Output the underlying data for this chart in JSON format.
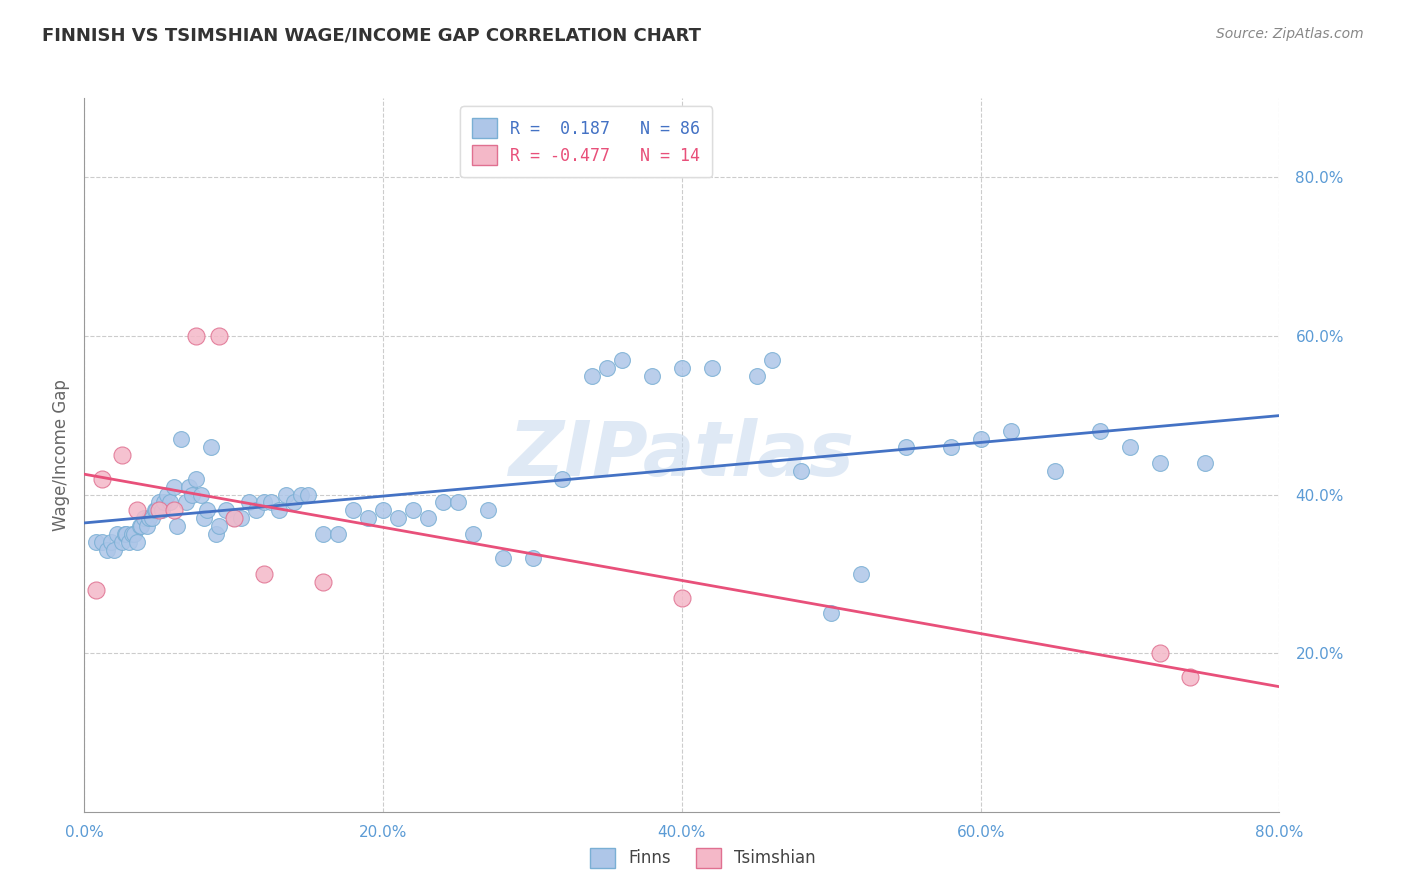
{
  "title": "FINNISH VS TSIMSHIAN WAGE/INCOME GAP CORRELATION CHART",
  "source": "Source: ZipAtlas.com",
  "ylabel": "Wage/Income Gap",
  "xlim": [
    0.0,
    0.8
  ],
  "ylim": [
    0.0,
    0.9
  ],
  "xticks": [
    0.0,
    0.2,
    0.4,
    0.6,
    0.8
  ],
  "yticks": [
    0.2,
    0.4,
    0.6,
    0.8
  ],
  "xticklabels": [
    "0.0%",
    "20.0%",
    "40.0%",
    "60.0%",
    "80.0%"
  ],
  "yticklabels": [
    "20.0%",
    "40.0%",
    "60.0%",
    "80.0%"
  ],
  "grid_color": "#cccccc",
  "background_color": "#ffffff",
  "finns_color": "#aec6e8",
  "finns_edge_color": "#7aafd4",
  "tsimshian_color": "#f4b8c8",
  "tsimshian_edge_color": "#e07090",
  "trend_finn_color": "#4472c4",
  "trend_tsim_color": "#e8507a",
  "watermark": "ZIPatlas",
  "legend_r_finn": "0.187",
  "legend_n_finn": "86",
  "legend_r_tsim": "-0.477",
  "legend_n_tsim": "14",
  "tick_color": "#5b9bd5",
  "finns_x": [
    0.008,
    0.012,
    0.015,
    0.018,
    0.02,
    0.022,
    0.025,
    0.027,
    0.028,
    0.03,
    0.032,
    0.033,
    0.035,
    0.037,
    0.038,
    0.04,
    0.042,
    0.043,
    0.045,
    0.047,
    0.048,
    0.05,
    0.052,
    0.053,
    0.055,
    0.057,
    0.06,
    0.062,
    0.065,
    0.068,
    0.07,
    0.072,
    0.075,
    0.078,
    0.08,
    0.082,
    0.085,
    0.088,
    0.09,
    0.095,
    0.1,
    0.105,
    0.11,
    0.115,
    0.12,
    0.125,
    0.13,
    0.135,
    0.14,
    0.145,
    0.15,
    0.16,
    0.17,
    0.18,
    0.19,
    0.2,
    0.21,
    0.22,
    0.23,
    0.24,
    0.25,
    0.26,
    0.27,
    0.28,
    0.3,
    0.32,
    0.34,
    0.35,
    0.36,
    0.38,
    0.4,
    0.42,
    0.45,
    0.46,
    0.48,
    0.5,
    0.52,
    0.55,
    0.58,
    0.6,
    0.62,
    0.65,
    0.68,
    0.7,
    0.72,
    0.75
  ],
  "finns_y": [
    0.34,
    0.34,
    0.33,
    0.34,
    0.33,
    0.35,
    0.34,
    0.35,
    0.35,
    0.34,
    0.35,
    0.35,
    0.34,
    0.36,
    0.36,
    0.37,
    0.36,
    0.37,
    0.37,
    0.38,
    0.38,
    0.39,
    0.38,
    0.39,
    0.4,
    0.39,
    0.41,
    0.36,
    0.47,
    0.39,
    0.41,
    0.4,
    0.42,
    0.4,
    0.37,
    0.38,
    0.46,
    0.35,
    0.36,
    0.38,
    0.37,
    0.37,
    0.39,
    0.38,
    0.39,
    0.39,
    0.38,
    0.4,
    0.39,
    0.4,
    0.4,
    0.35,
    0.35,
    0.38,
    0.37,
    0.38,
    0.37,
    0.38,
    0.37,
    0.39,
    0.39,
    0.35,
    0.38,
    0.32,
    0.32,
    0.42,
    0.55,
    0.56,
    0.57,
    0.55,
    0.56,
    0.56,
    0.55,
    0.57,
    0.43,
    0.25,
    0.3,
    0.46,
    0.46,
    0.47,
    0.48,
    0.43,
    0.48,
    0.46,
    0.44,
    0.44
  ],
  "tsimshian_x": [
    0.008,
    0.012,
    0.025,
    0.035,
    0.05,
    0.06,
    0.075,
    0.09,
    0.1,
    0.12,
    0.16,
    0.4,
    0.72,
    0.74
  ],
  "tsimshian_y": [
    0.28,
    0.42,
    0.45,
    0.38,
    0.38,
    0.38,
    0.6,
    0.6,
    0.37,
    0.3,
    0.29,
    0.27,
    0.2,
    0.17
  ]
}
